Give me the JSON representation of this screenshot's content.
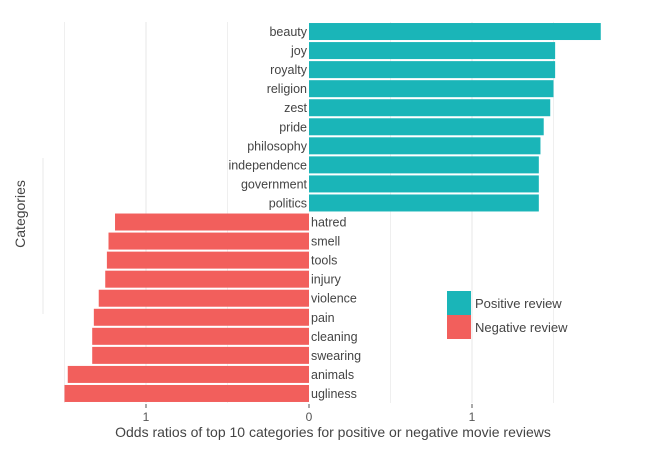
{
  "chart_data": {
    "type": "bar",
    "orientation": "horizontal",
    "xlabel": "Odds ratios of top 10 categories for positive or negative movie reviews",
    "ylabel": "Categories",
    "x_ticks": [
      {
        "value": -1,
        "label": "1"
      },
      {
        "value": 0,
        "label": "0"
      },
      {
        "value": 1,
        "label": "1"
      }
    ],
    "xlim": [
      -1.5,
      2.1
    ],
    "grid": true,
    "legend_position": "right",
    "series": [
      {
        "name": "Positive review",
        "color": "#1AB5B8",
        "categories": [
          "beauty",
          "joy",
          "royalty",
          "religion",
          "zest",
          "pride",
          "philosophy",
          "independence",
          "government",
          "politics"
        ],
        "values": [
          1.79,
          1.51,
          1.51,
          1.5,
          1.48,
          1.44,
          1.42,
          1.41,
          1.41,
          1.41
        ]
      },
      {
        "name": "Negative review",
        "color": "#F25F5C",
        "categories": [
          "hatred",
          "smell",
          "tools",
          "injury",
          "violence",
          "pain",
          "cleaning",
          "swearing",
          "animals",
          "ugliness"
        ],
        "values": [
          1.19,
          1.23,
          1.24,
          1.25,
          1.29,
          1.32,
          1.33,
          1.33,
          1.48,
          1.5
        ]
      }
    ]
  }
}
